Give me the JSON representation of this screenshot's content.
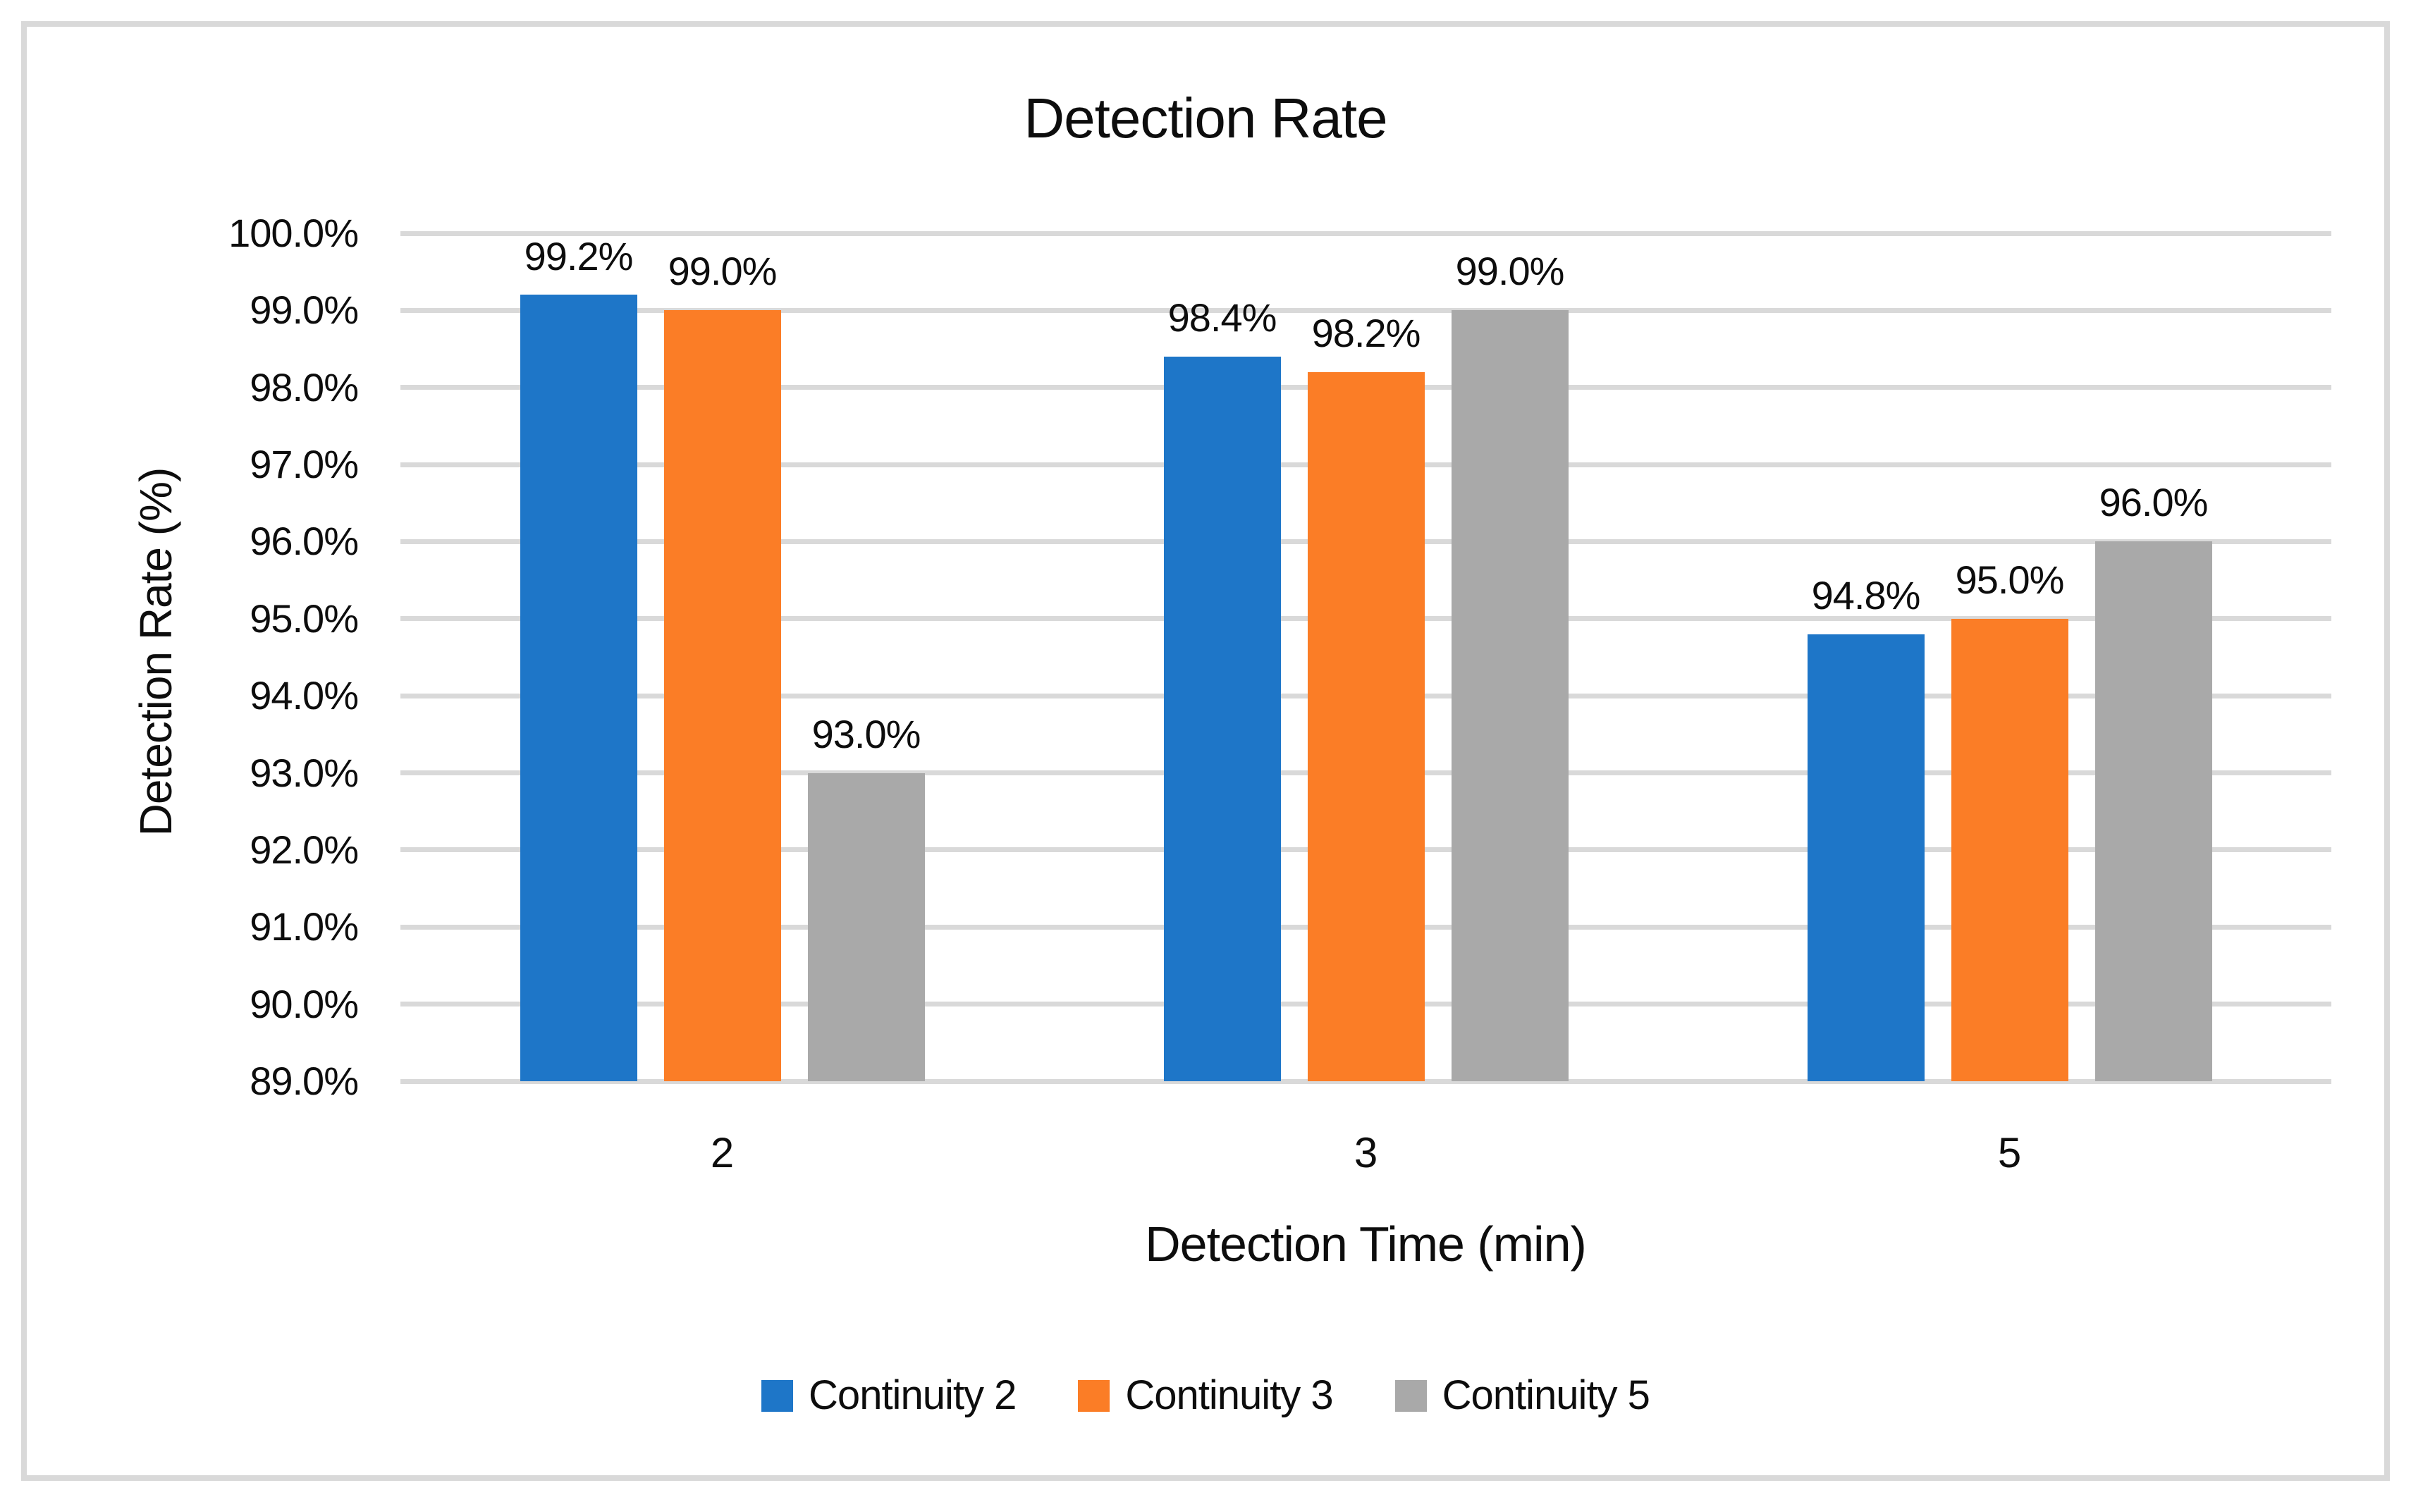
{
  "figure": {
    "title": "Detection Rate",
    "x_axis_title": "Detection Time (min)",
    "y_axis_title": "Detection Rate (%)",
    "background_color": "#FFFFFF",
    "border_color": "#D9D9D9",
    "gridline_color": "#D9D9D9",
    "text_color": "#0D0D0D"
  },
  "chart_data": {
    "type": "bar",
    "title": "Detection Rate",
    "xlabel": "Detection Time (min)",
    "ylabel": "Detection Rate (%)",
    "categories": [
      "2",
      "3",
      "5"
    ],
    "series": [
      {
        "name": "Continuity 2",
        "color": "#1E76C8",
        "values": [
          99.2,
          98.4,
          94.8
        ],
        "data_labels": [
          "99.2%",
          "98.4%",
          "94.8%"
        ]
      },
      {
        "name": "Continuity 3",
        "color": "#FB7D26",
        "values": [
          99.0,
          98.2,
          95.0
        ],
        "data_labels": [
          "99.0%",
          "98.2%",
          "95.0%"
        ]
      },
      {
        "name": "Continuity 5",
        "color": "#A9A9A9",
        "values": [
          93.0,
          99.0,
          96.0
        ],
        "data_labels": [
          "93.0%",
          "99.0%",
          "96.0%"
        ]
      }
    ],
    "y_ticks": [
      "100.0%",
      "99.0%",
      "98.0%",
      "97.0%",
      "96.0%",
      "95.0%",
      "94.0%",
      "93.0%",
      "92.0%",
      "91.0%",
      "90.0%",
      "89.0%"
    ],
    "ylim": [
      89,
      100
    ],
    "y_step": 1,
    "grid": "horizontal",
    "legend_position": "bottom",
    "legend": [
      "Continuity 2",
      "Continuity 3",
      "Continuity 5"
    ]
  }
}
